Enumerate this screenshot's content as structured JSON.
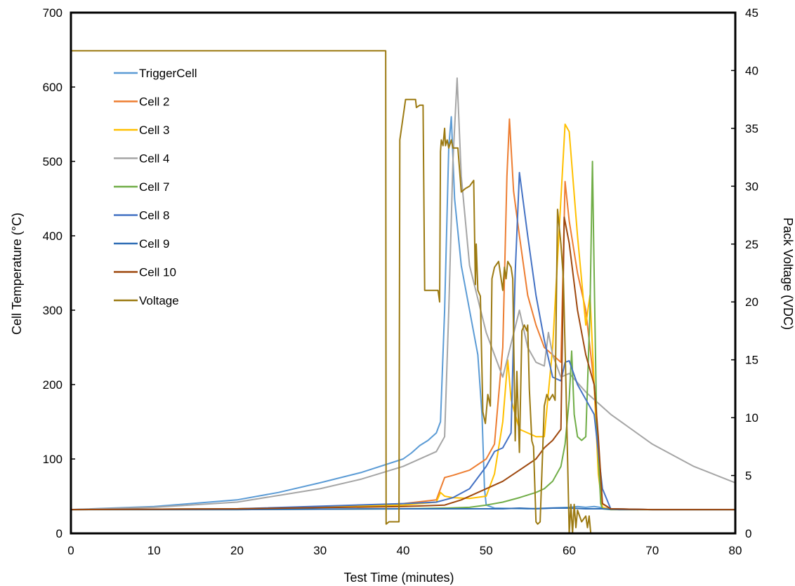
{
  "chart_data": {
    "type": "line",
    "title": "",
    "xlabel": "Test Time (minutes)",
    "ylabel": "Cell Temperature (°C)",
    "y2label": "Pack Voltage (VDC)",
    "xlim": [
      0,
      80
    ],
    "ylim": [
      0,
      700
    ],
    "y2lim": [
      0,
      45
    ],
    "xticks": [
      0,
      10,
      20,
      30,
      40,
      50,
      60,
      70,
      80
    ],
    "yticks": [
      0,
      100,
      200,
      300,
      400,
      500,
      600,
      700
    ],
    "y2ticks": [
      0,
      5,
      10,
      15,
      20,
      25,
      30,
      35,
      40,
      45
    ],
    "grid": false,
    "legend_position": "top-left",
    "series": [
      {
        "name": "TriggerCell",
        "axis": "left",
        "color": "#5b9bd5",
        "x": [
          0,
          10,
          20,
          25,
          30,
          35,
          40,
          41,
          42,
          43,
          44,
          44.5,
          45,
          45.5,
          45.8,
          46.2,
          47,
          48,
          49,
          49.5,
          49.8,
          50,
          51,
          55,
          60,
          61,
          62,
          63,
          65,
          70,
          80
        ],
        "y": [
          32,
          36,
          45,
          55,
          68,
          82,
          100,
          108,
          118,
          125,
          135,
          150,
          300,
          520,
          560,
          450,
          360,
          300,
          240,
          160,
          60,
          38,
          34,
          33,
          35,
          36,
          35,
          36,
          33,
          32,
          32
        ]
      },
      {
        "name": "Cell 2",
        "axis": "left",
        "color": "#ed7d31",
        "x": [
          0,
          20,
          30,
          40,
          44,
          44.5,
          45,
          46,
          48,
          50,
          51,
          52,
          52.5,
          52.8,
          53.3,
          54,
          55,
          56,
          57,
          58,
          59,
          59.5,
          60,
          61,
          62,
          63,
          63.5,
          64,
          65,
          70,
          80
        ],
        "y": [
          32,
          33,
          35,
          40,
          45,
          60,
          75,
          78,
          85,
          100,
          120,
          250,
          480,
          557,
          460,
          400,
          320,
          280,
          250,
          240,
          230,
          473,
          420,
          350,
          300,
          200,
          100,
          40,
          33,
          32,
          32
        ]
      },
      {
        "name": "Cell 3",
        "axis": "left",
        "color": "#ffc000",
        "x": [
          0,
          20,
          40,
          44,
          44.5,
          45,
          46,
          48,
          50,
          51,
          52,
          52.6,
          53,
          54,
          55,
          56,
          57,
          58,
          59,
          59.5,
          60,
          61,
          62,
          62.5,
          63,
          63.5,
          64,
          65,
          70,
          80
        ],
        "y": [
          32,
          33,
          38,
          42,
          55,
          50,
          48,
          47,
          50,
          80,
          150,
          233,
          180,
          140,
          135,
          130,
          130,
          250,
          450,
          550,
          540,
          400,
          280,
          320,
          200,
          80,
          35,
          32,
          32,
          32
        ]
      },
      {
        "name": "Cell 4",
        "axis": "left",
        "color": "#a5a5a5",
        "x": [
          0,
          10,
          20,
          30,
          35,
          40,
          44,
          45,
          45.5,
          46,
          46.5,
          47,
          48,
          50,
          52,
          54,
          55,
          56,
          57,
          57.5,
          58,
          59,
          60,
          62,
          65,
          70,
          75,
          80
        ],
        "y": [
          32,
          35,
          42,
          60,
          73,
          90,
          110,
          130,
          300,
          500,
          612,
          480,
          360,
          270,
          210,
          300,
          250,
          230,
          225,
          270,
          240,
          210,
          215,
          190,
          160,
          120,
          90,
          68
        ]
      },
      {
        "name": "Cell 7",
        "axis": "left",
        "color": "#70ad47",
        "x": [
          0,
          20,
          40,
          45,
          48,
          50,
          52,
          54,
          56,
          57,
          58,
          59,
          59.5,
          60,
          60.3,
          60.6,
          61,
          61.5,
          62,
          62.5,
          62.8,
          63,
          63.3,
          63.8,
          64,
          65,
          70,
          80
        ],
        "y": [
          32,
          32,
          33,
          34,
          35,
          38,
          42,
          48,
          55,
          60,
          70,
          90,
          120,
          180,
          245,
          160,
          130,
          125,
          130,
          300,
          500,
          350,
          150,
          40,
          33,
          32,
          32,
          32
        ]
      },
      {
        "name": "Cell 8",
        "axis": "left",
        "color": "#4472c4",
        "x": [
          0,
          20,
          40,
          44,
          45,
          46,
          48,
          50,
          51,
          52,
          53,
          53.5,
          54,
          55,
          56,
          57,
          58,
          59,
          59.5,
          60,
          61,
          62,
          63,
          64,
          65,
          70,
          80
        ],
        "y": [
          32,
          33,
          40,
          42,
          45,
          48,
          60,
          90,
          110,
          115,
          135,
          350,
          485,
          400,
          320,
          260,
          210,
          205,
          230,
          232,
          200,
          180,
          160,
          60,
          33,
          32,
          32
        ]
      },
      {
        "name": "Cell 9",
        "axis": "left",
        "color": "#2f6db5",
        "x": [
          0,
          20,
          40,
          48,
          50,
          52,
          54,
          56,
          58,
          60,
          62,
          64,
          66,
          70,
          80
        ],
        "y": [
          32,
          32,
          33,
          33,
          33,
          33,
          34,
          33,
          34,
          34,
          33,
          33,
          32,
          32,
          32
        ]
      },
      {
        "name": "Cell 10",
        "axis": "left",
        "color": "#9e480e",
        "x": [
          0,
          20,
          40,
          45,
          47,
          50,
          52,
          54,
          56,
          57,
          58,
          59,
          59.4,
          60,
          61,
          62,
          63,
          63.5,
          64,
          65,
          70,
          80
        ],
        "y": [
          32,
          33,
          36,
          38,
          45,
          60,
          70,
          85,
          100,
          115,
          125,
          140,
          425,
          390,
          300,
          240,
          200,
          130,
          40,
          33,
          32,
          32
        ]
      },
      {
        "name": "Voltage",
        "axis": "right",
        "color": "#9c7a12",
        "x": [
          0,
          37.9,
          37.95,
          38.3,
          39.5,
          39.6,
          40,
          40.3,
          41.5,
          41.6,
          42,
          42.4,
          42.6,
          44.2,
          44.4,
          44.5,
          44.6,
          44.8,
          45,
          45.1,
          45.3,
          45.5,
          45.8,
          46,
          46.6,
          47,
          47.5,
          48,
          48.5,
          48.7,
          48.8,
          49,
          49.3,
          49.6,
          49.9,
          50.2,
          50.5,
          50.7,
          51,
          51.5,
          52,
          52.2,
          52.4,
          52.6,
          53,
          53.2,
          53.5,
          53.7,
          54,
          54.3,
          54.6,
          54.9,
          55,
          55.2,
          55.5,
          55.7,
          56,
          56.2,
          56.5,
          57,
          57.3,
          57.6,
          58,
          58.3,
          58.6,
          59,
          59.3,
          59.6,
          60,
          60.2,
          60.4,
          60.6,
          60.8,
          61,
          61.5,
          62,
          62.2,
          62.4,
          62.6,
          62.8,
          63,
          63.2,
          63.5,
          64,
          80
        ],
        "y": [
          41.7,
          41.7,
          0.8,
          1.0,
          1.0,
          34,
          36,
          37.5,
          37.5,
          36.8,
          37.0,
          37.0,
          21.0,
          21.0,
          20.0,
          33.0,
          34.0,
          33.5,
          35.0,
          33.5,
          34.0,
          33.3,
          34.0,
          33.3,
          33.3,
          29.5,
          29.8,
          30.0,
          30.5,
          21.5,
          25.0,
          21.0,
          20.5,
          10.5,
          9.5,
          12.0,
          11.0,
          22.0,
          23.0,
          23.5,
          21.0,
          23.0,
          22.0,
          23.5,
          23.0,
          22.0,
          8.0,
          14.0,
          7.0,
          17.5,
          18.0,
          17.5,
          18.0,
          12.5,
          8.0,
          7.5,
          1.0,
          0.8,
          1.0,
          11.0,
          12.0,
          11.5,
          12.0,
          11.5,
          28.0,
          25.0,
          22.0,
          13.0,
          0.0,
          2.5,
          0.0,
          2.5,
          0.5,
          2.0,
          1.0,
          1.5,
          0.5,
          1.5,
          0.0,
          0.0,
          0.0,
          0.0,
          0.0,
          0.0,
          0.0
        ]
      }
    ]
  }
}
